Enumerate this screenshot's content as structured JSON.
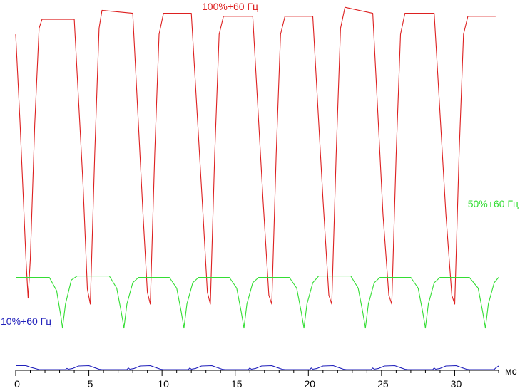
{
  "chart_data": {
    "type": "line",
    "xlabel": "",
    "ylabel": "",
    "x_unit": "мс",
    "xlim": [
      0,
      33
    ],
    "ylim": [
      0,
      1
    ],
    "x_ticks": [
      0,
      5,
      10,
      15,
      20,
      25,
      30
    ],
    "grid": false,
    "legend": "labels placed next to each trace",
    "series": [
      {
        "name": "100%+60 Гц",
        "color": "#dd2020",
        "x": [
          0.0,
          0.3,
          0.7,
          0.85,
          1.0,
          1.3,
          1.6,
          1.8,
          4.0,
          4.6,
          4.9,
          5.1,
          5.4,
          5.7,
          5.9,
          8.0,
          8.7,
          9.0,
          9.2,
          9.5,
          9.8,
          10.1,
          12.0,
          12.8,
          13.1,
          13.3,
          13.6,
          13.9,
          14.2,
          16.2,
          16.9,
          17.3,
          17.5,
          17.8,
          18.1,
          18.4,
          20.3,
          21.0,
          21.4,
          21.6,
          21.9,
          22.2,
          22.5,
          24.4,
          25.1,
          25.5,
          25.7,
          26.0,
          26.3,
          26.6,
          28.6,
          29.4,
          29.8,
          30.0,
          30.3,
          30.6,
          30.9,
          32.8
        ],
        "y": [
          0.9,
          0.6,
          0.15,
          0.02,
          0.15,
          0.6,
          0.92,
          0.95,
          0.95,
          0.4,
          0.05,
          0.0,
          0.5,
          0.92,
          0.98,
          0.97,
          0.3,
          0.04,
          0.0,
          0.5,
          0.9,
          0.97,
          0.97,
          0.3,
          0.04,
          0.0,
          0.5,
          0.9,
          0.96,
          0.96,
          0.35,
          0.03,
          0.0,
          0.5,
          0.9,
          0.96,
          0.96,
          0.35,
          0.03,
          0.0,
          0.5,
          0.92,
          0.99,
          0.97,
          0.3,
          0.03,
          0.0,
          0.5,
          0.9,
          0.97,
          0.97,
          0.3,
          0.03,
          0.0,
          0.5,
          0.9,
          0.96,
          0.96
        ]
      },
      {
        "name": "50%+60 Гц",
        "color": "#33dd33",
        "x": [
          0.0,
          2.3,
          2.8,
          3.1,
          3.2,
          3.4,
          3.8,
          4.2,
          6.4,
          6.9,
          7.2,
          7.4,
          7.6,
          8.0,
          8.4,
          10.5,
          11.0,
          11.3,
          11.5,
          11.7,
          12.1,
          12.5,
          14.6,
          15.1,
          15.4,
          15.6,
          15.8,
          16.2,
          16.6,
          18.7,
          19.2,
          19.5,
          19.7,
          19.9,
          20.3,
          20.7,
          22.9,
          23.4,
          23.7,
          23.9,
          24.1,
          24.5,
          24.9,
          27.0,
          27.5,
          27.8,
          28.0,
          28.2,
          28.6,
          29.0,
          31.0,
          31.6,
          31.9,
          32.1,
          32.3,
          32.7,
          33.0
        ],
        "y": [
          0.5,
          0.5,
          0.4,
          0.2,
          0.12,
          0.3,
          0.48,
          0.51,
          0.51,
          0.42,
          0.25,
          0.12,
          0.3,
          0.46,
          0.5,
          0.5,
          0.42,
          0.25,
          0.12,
          0.3,
          0.46,
          0.5,
          0.5,
          0.42,
          0.25,
          0.12,
          0.3,
          0.46,
          0.5,
          0.5,
          0.42,
          0.25,
          0.12,
          0.3,
          0.46,
          0.51,
          0.51,
          0.42,
          0.25,
          0.12,
          0.3,
          0.46,
          0.5,
          0.5,
          0.42,
          0.25,
          0.12,
          0.3,
          0.46,
          0.5,
          0.5,
          0.42,
          0.25,
          0.12,
          0.3,
          0.46,
          0.5
        ]
      },
      {
        "name": "10%+60 Гц",
        "color": "#2020bb",
        "x": [
          0.0,
          0.7,
          1.0,
          1.4,
          1.6,
          3.4,
          3.5,
          3.6,
          3.9,
          4.3,
          5.0,
          5.3,
          5.7,
          5.9,
          7.6,
          7.7,
          7.8,
          8.1,
          8.5,
          9.2,
          9.5,
          9.9,
          10.1,
          11.8,
          11.9,
          12.0,
          12.3,
          12.7,
          13.4,
          13.7,
          14.1,
          14.3,
          15.9,
          16.0,
          16.1,
          16.4,
          16.8,
          17.5,
          17.8,
          18.2,
          18.4,
          20.1,
          20.2,
          20.3,
          20.6,
          21.0,
          21.7,
          22.0,
          22.4,
          22.6,
          24.3,
          24.4,
          24.5,
          24.8,
          25.2,
          25.9,
          26.2,
          26.6,
          26.8,
          28.5,
          28.6,
          28.7,
          29.0,
          29.4,
          30.1,
          30.4,
          30.8,
          31.0,
          32.7,
          32.8,
          33.0
        ],
        "y": [
          0.1,
          0.1,
          0.06,
          0.02,
          0.0,
          0.0,
          0.03,
          0.01,
          0.03,
          0.09,
          0.1,
          0.06,
          0.01,
          0.0,
          0.0,
          0.04,
          0.01,
          0.03,
          0.09,
          0.1,
          0.06,
          0.01,
          0.0,
          0.0,
          0.04,
          0.01,
          0.03,
          0.09,
          0.1,
          0.06,
          0.01,
          0.0,
          0.0,
          0.04,
          0.01,
          0.03,
          0.09,
          0.1,
          0.06,
          0.01,
          0.0,
          0.0,
          0.04,
          0.01,
          0.03,
          0.09,
          0.1,
          0.06,
          0.01,
          0.0,
          0.0,
          0.04,
          0.01,
          0.03,
          0.09,
          0.1,
          0.06,
          0.01,
          0.0,
          0.0,
          0.04,
          0.01,
          0.03,
          0.09,
          0.1,
          0.06,
          0.01,
          0.0,
          0.0,
          0.04,
          0.09
        ]
      }
    ]
  }
}
